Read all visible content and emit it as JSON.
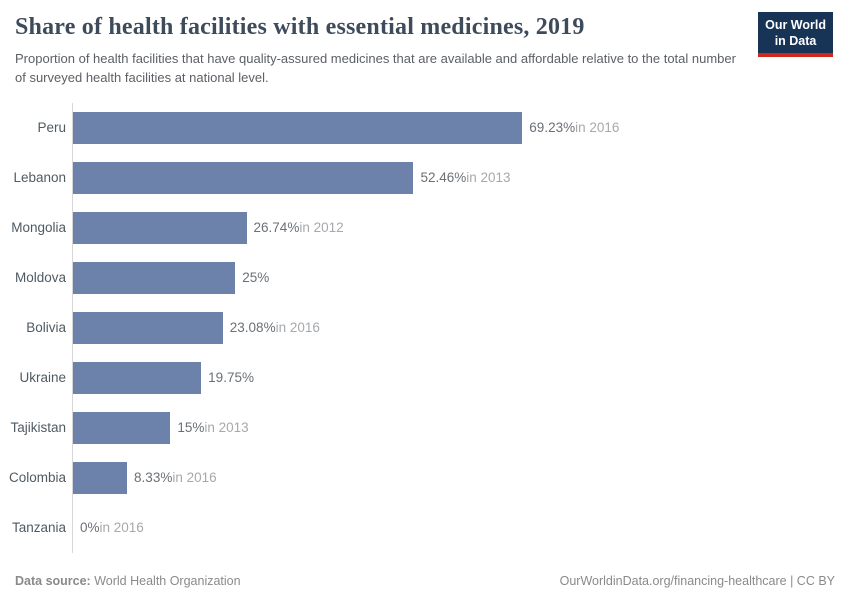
{
  "header": {
    "title": "Share of health facilities with essential medicines, 2019",
    "subtitle": "Proportion of health facilities that have quality-assured medicines that are available and affordable relative to the total number of surveyed health facilities at national level.",
    "logo": {
      "line1": "Our World",
      "line2": "in Data",
      "bg_color": "#173356",
      "accent_color": "#d0281f"
    }
  },
  "chart_data": {
    "type": "bar",
    "orientation": "horizontal",
    "title": "Share of health facilities with essential medicines, 2019",
    "unit": "%",
    "xlim": [
      0,
      100
    ],
    "grid": false,
    "legend": "none",
    "bar_color": "#6c82ab",
    "axis_line_color": "#d6d6d6",
    "categories": [
      "Peru",
      "Lebanon",
      "Mongolia",
      "Moldova",
      "Bolivia",
      "Ukraine",
      "Tajikistan",
      "Colombia",
      "Tanzania"
    ],
    "values": [
      69.23,
      52.46,
      26.74,
      25,
      23.08,
      19.75,
      15,
      8.33,
      0
    ],
    "value_labels": [
      "69.23%",
      "52.46%",
      "26.74%",
      "25%",
      "23.08%",
      "19.75%",
      "15%",
      "8.33%",
      "0%"
    ],
    "year_labels": [
      "in 2016",
      "in 2013",
      "in 2012",
      "",
      "in 2016",
      "",
      "in 2013",
      "in 2016",
      "in 2016"
    ]
  },
  "footer": {
    "datasource_label": "Data source:",
    "datasource_value": "World Health Organization",
    "link_text": "OurWorldinData.org/financing-healthcare | CC BY"
  }
}
